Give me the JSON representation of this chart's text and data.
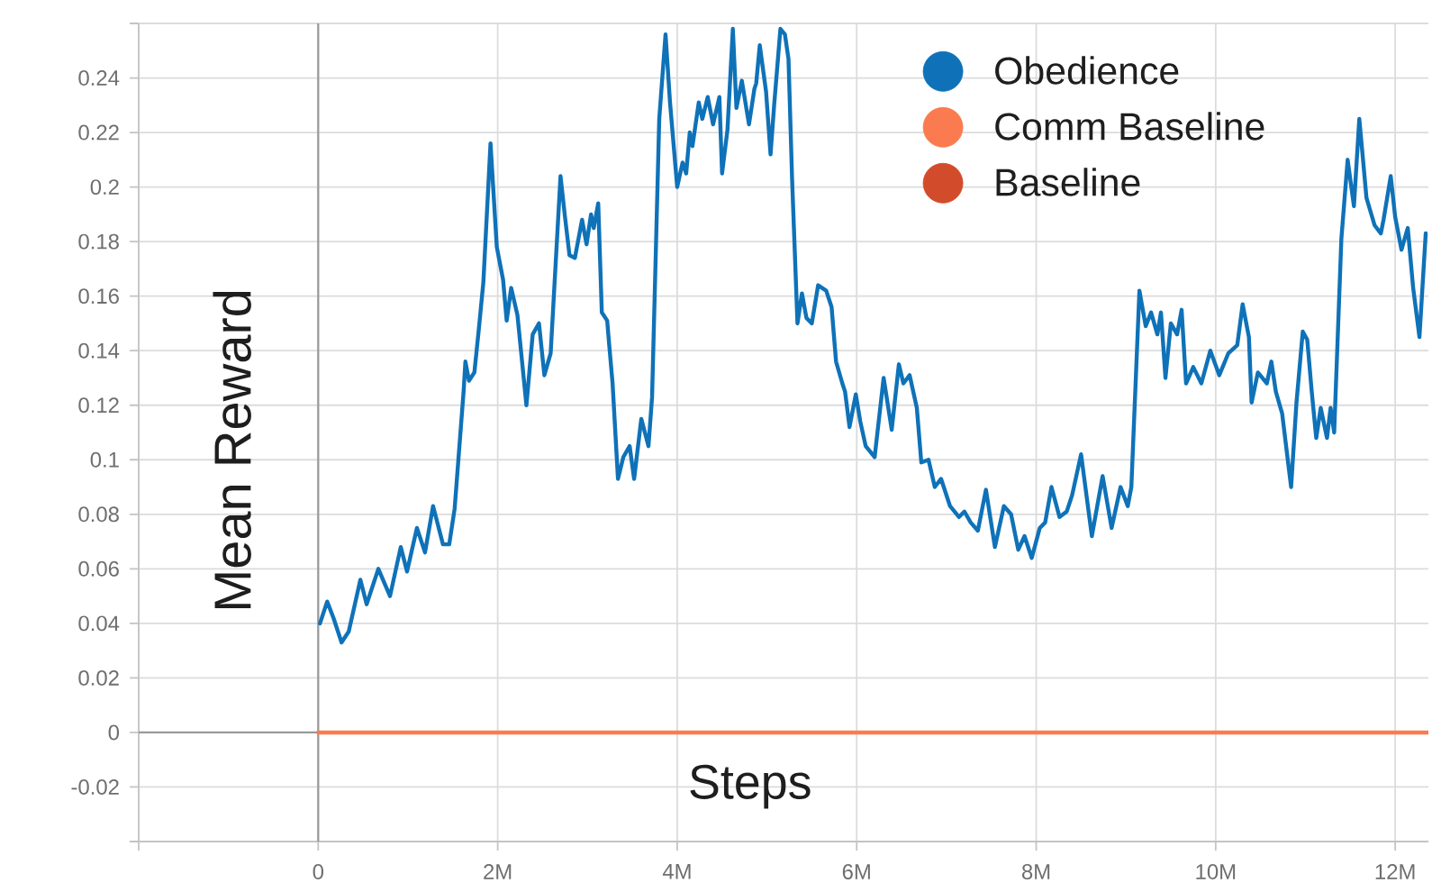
{
  "chart_data": {
    "type": "line",
    "xlabel": "Steps",
    "ylabel": "Mean Reward",
    "xlim": [
      -2000000,
      12370000
    ],
    "ylim": [
      -0.04,
      0.26
    ],
    "xticks": [
      {
        "value": -2000000,
        "label": null
      },
      0,
      {
        "value": 2000000,
        "label": "2M"
      },
      {
        "value": 4000000,
        "label": "4M"
      },
      {
        "value": 6000000,
        "label": "6M"
      },
      {
        "value": 8000000,
        "label": "8M"
      },
      {
        "value": 10000000,
        "label": "10M"
      },
      {
        "value": 12000000,
        "label": "12M"
      }
    ],
    "yticks": [
      {
        "value": -0.04,
        "label": null
      },
      -0.02,
      0,
      0.02,
      0.04,
      0.06,
      0.08,
      0.1,
      0.12,
      0.14,
      0.16,
      0.18,
      0.2,
      0.22,
      0.24,
      {
        "value": 0.26,
        "label": null
      }
    ],
    "grid": true,
    "legend": "top right",
    "series": [
      {
        "name": "Obedience",
        "color": "#0f72b8",
        "x": [
          20000,
          100000,
          170000,
          260000,
          340000,
          470000,
          540000,
          670000,
          800000,
          920000,
          990000,
          1100000,
          1190000,
          1280000,
          1390000,
          1460000,
          1520000,
          1620000,
          1640000,
          1680000,
          1740000,
          1790000,
          1840000,
          1920000,
          1990000,
          2060000,
          2100000,
          2150000,
          2220000,
          2320000,
          2390000,
          2460000,
          2520000,
          2590000,
          2700000,
          2750000,
          2800000,
          2860000,
          2940000,
          2990000,
          3040000,
          3070000,
          3120000,
          3160000,
          3220000,
          3240000,
          3280000,
          3340000,
          3400000,
          3470000,
          3520000,
          3600000,
          3680000,
          3720000,
          3800000,
          3870000,
          3920000,
          4000000,
          4060000,
          4100000,
          4140000,
          4170000,
          4240000,
          4280000,
          4340000,
          4400000,
          4470000,
          4500000,
          4560000,
          4620000,
          4660000,
          4720000,
          4800000,
          4860000,
          4880000,
          4920000,
          4990000,
          5040000,
          5080000,
          5150000,
          5200000,
          5240000,
          5280000,
          5340000,
          5390000,
          5440000,
          5500000,
          5570000,
          5660000,
          5720000,
          5770000,
          5840000,
          5870000,
          5920000,
          5990000,
          6040000,
          6100000,
          6200000,
          6300000,
          6390000,
          6470000,
          6520000,
          6590000,
          6670000,
          6720000,
          6800000,
          6870000,
          6940000,
          7040000,
          7140000,
          7200000,
          7270000,
          7350000,
          7440000,
          7540000,
          7640000,
          7720000,
          7800000,
          7870000,
          7950000,
          8040000,
          8100000,
          8170000,
          8260000,
          8340000,
          8400000,
          8500000,
          8620000,
          8740000,
          8840000,
          8940000,
          9020000,
          9060000,
          9150000,
          9220000,
          9280000,
          9350000,
          9390000,
          9440000,
          9500000,
          9570000,
          9620000,
          9670000,
          9750000,
          9840000,
          9940000,
          10040000,
          10140000,
          10240000,
          10300000,
          10370000,
          10400000,
          10470000,
          10570000,
          10620000,
          10670000,
          10740000,
          10840000,
          10900000,
          10970000,
          11020000,
          11070000,
          11120000,
          11170000,
          11240000,
          11280000,
          11320000,
          11400000,
          11470000,
          11540000,
          11600000,
          11680000,
          11770000,
          11840000,
          11870000,
          11950000,
          12000000,
          12070000,
          12140000,
          12200000,
          12270000,
          12340000
        ],
        "values": [
          0.04,
          0.048,
          0.042,
          0.033,
          0.037,
          0.056,
          0.047,
          0.06,
          0.05,
          0.068,
          0.059,
          0.075,
          0.066,
          0.083,
          0.069,
          0.069,
          0.082,
          0.125,
          0.136,
          0.129,
          0.132,
          0.148,
          0.165,
          0.216,
          0.178,
          0.166,
          0.151,
          0.163,
          0.153,
          0.12,
          0.146,
          0.15,
          0.131,
          0.139,
          0.204,
          0.189,
          0.175,
          0.174,
          0.188,
          0.179,
          0.19,
          0.185,
          0.194,
          0.154,
          0.151,
          0.143,
          0.128,
          0.093,
          0.101,
          0.105,
          0.093,
          0.115,
          0.105,
          0.123,
          0.225,
          0.256,
          0.231,
          0.2,
          0.209,
          0.205,
          0.22,
          0.215,
          0.231,
          0.225,
          0.233,
          0.223,
          0.233,
          0.205,
          0.221,
          0.258,
          0.229,
          0.239,
          0.223,
          0.236,
          0.238,
          0.252,
          0.235,
          0.212,
          0.23,
          0.258,
          0.256,
          0.247,
          0.203,
          0.15,
          0.161,
          0.152,
          0.15,
          0.164,
          0.162,
          0.156,
          0.136,
          0.128,
          0.125,
          0.112,
          0.124,
          0.114,
          0.105,
          0.101,
          0.13,
          0.111,
          0.135,
          0.128,
          0.131,
          0.119,
          0.099,
          0.1,
          0.09,
          0.093,
          0.083,
          0.079,
          0.081,
          0.077,
          0.074,
          0.089,
          0.068,
          0.083,
          0.08,
          0.067,
          0.072,
          0.064,
          0.075,
          0.077,
          0.09,
          0.079,
          0.081,
          0.087,
          0.102,
          0.072,
          0.094,
          0.075,
          0.09,
          0.083,
          0.09,
          0.162,
          0.149,
          0.154,
          0.146,
          0.154,
          0.13,
          0.15,
          0.146,
          0.155,
          0.128,
          0.134,
          0.128,
          0.14,
          0.131,
          0.139,
          0.142,
          0.157,
          0.145,
          0.121,
          0.132,
          0.128,
          0.136,
          0.125,
          0.117,
          0.09,
          0.121,
          0.147,
          0.144,
          0.125,
          0.108,
          0.119,
          0.108,
          0.119,
          0.11,
          0.181,
          0.21,
          0.193,
          0.225,
          0.196,
          0.186,
          0.183,
          0.188,
          0.204,
          0.189,
          0.177,
          0.185,
          0.163,
          0.145,
          0.183
        ]
      },
      {
        "name": "Comm Baseline",
        "color": "#fb7b51",
        "x": [
          0,
          12370000
        ],
        "values": [
          0,
          0
        ]
      },
      {
        "name": "Baseline",
        "color": "#d24c2c"
      }
    ]
  }
}
